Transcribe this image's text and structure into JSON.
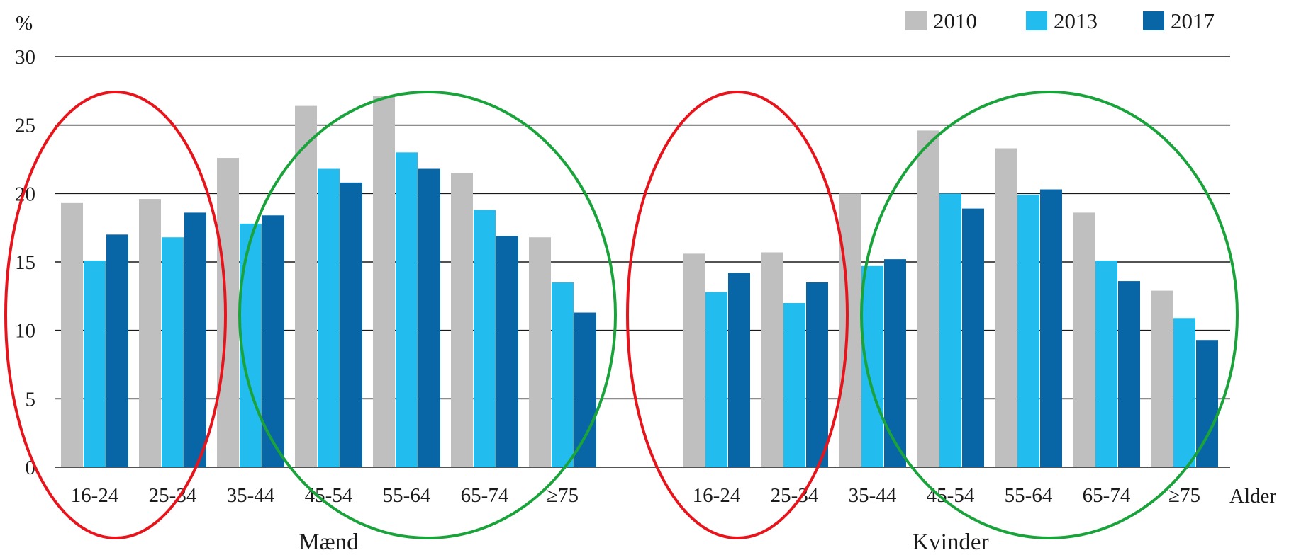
{
  "chart_data": {
    "type": "bar",
    "ylabel": "%",
    "xlabel": "Alder",
    "ylim": [
      0,
      30
    ],
    "yticks": [
      0,
      5,
      10,
      15,
      20,
      25,
      30
    ],
    "grid": true,
    "legend_position": "top-right",
    "categories": [
      "16-24",
      "25-34",
      "35-44",
      "45-54",
      "55-64",
      "65-74",
      "≥75"
    ],
    "groups": [
      {
        "label": "Mænd",
        "series": [
          {
            "name": "2010",
            "values": [
              19.3,
              19.6,
              22.6,
              26.4,
              27.1,
              21.5,
              16.8
            ]
          },
          {
            "name": "2013",
            "values": [
              15.1,
              16.8,
              17.8,
              21.8,
              23.0,
              18.8,
              13.5
            ]
          },
          {
            "name": "2017",
            "values": [
              17.0,
              18.6,
              18.4,
              20.8,
              21.8,
              16.9,
              11.3
            ]
          }
        ]
      },
      {
        "label": "Kvinder",
        "series": [
          {
            "name": "2010",
            "values": [
              15.6,
              15.7,
              20.0,
              24.6,
              23.3,
              18.6,
              12.9
            ]
          },
          {
            "name": "2013",
            "values": [
              12.8,
              12.0,
              14.7,
              20.0,
              19.9,
              15.1,
              10.9
            ]
          },
          {
            "name": "2017",
            "values": [
              14.2,
              13.5,
              15.2,
              18.9,
              20.3,
              13.6,
              9.3
            ]
          }
        ]
      }
    ],
    "colors": {
      "2010": "#bfbfbf",
      "2013": "#22bdee",
      "2017": "#0866a7"
    },
    "annotations": [
      {
        "type": "ellipse",
        "color": "#e8141c",
        "group": "Mænd",
        "covers": [
          "16-24",
          "25-34"
        ]
      },
      {
        "type": "ellipse",
        "color": "#1aa33b",
        "group": "Mænd",
        "covers": [
          "45-54",
          "55-64",
          "65-74",
          "≥75"
        ]
      },
      {
        "type": "ellipse",
        "color": "#e8141c",
        "group": "Kvinder",
        "covers": [
          "16-24",
          "25-34"
        ]
      },
      {
        "type": "ellipse",
        "color": "#1aa33b",
        "group": "Kvinder",
        "covers": [
          "45-54",
          "55-64",
          "65-74",
          "≥75"
        ]
      }
    ]
  }
}
